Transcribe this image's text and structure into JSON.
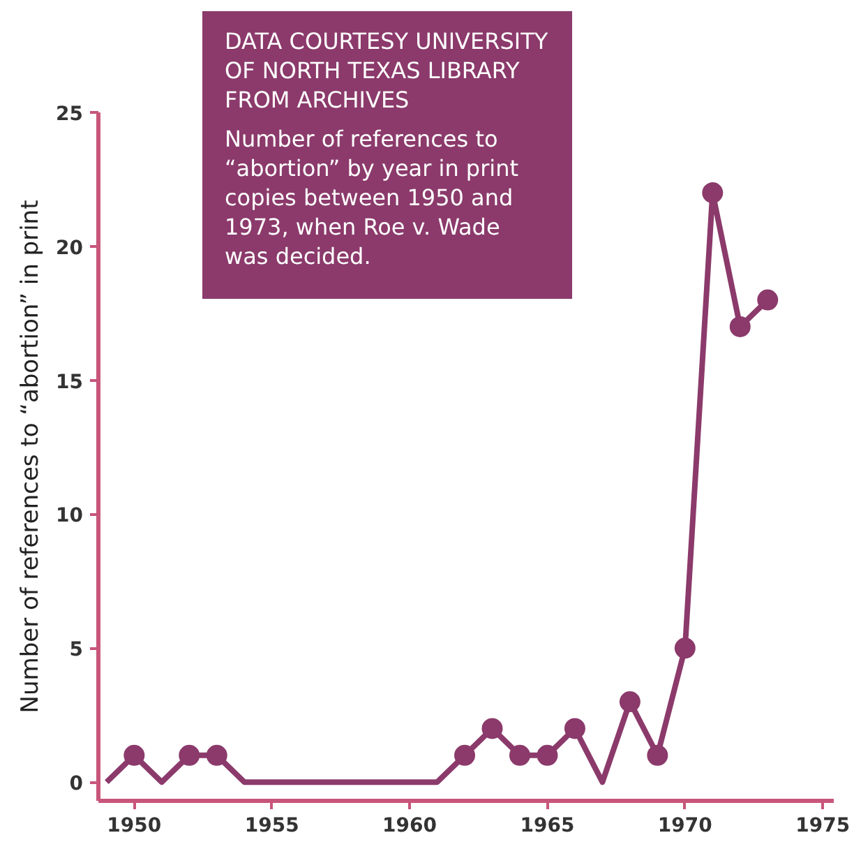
{
  "chart_data": {
    "type": "line",
    "ylabel": "Number of references to “abortion” in print",
    "annotations": [
      "DATA COURTESY UNIVERSITY OF NORTH TEXAS LIBRARY FROM ARCHIVES",
      "Number of references to “abortion” by year in print copies between 1950 and 1973, when Roe v. Wade was decided."
    ],
    "series": [
      {
        "marker": "none",
        "color": "#8b3a6b",
        "x": [
          1949,
          1950,
          1951,
          1952,
          1953,
          1954,
          1955,
          1956,
          1957,
          1958,
          1959,
          1960,
          1961,
          1962,
          1963,
          1964,
          1965,
          1966,
          1967,
          1968,
          1969,
          1970,
          1971,
          1972,
          1973
        ],
        "values": [
          0,
          1,
          0,
          1,
          1,
          0,
          0,
          0,
          0,
          0,
          0,
          0,
          0,
          1,
          2,
          1,
          1,
          2,
          0,
          3,
          1,
          5,
          22,
          17,
          18
        ]
      },
      {
        "type": "scatter",
        "marker": "circle",
        "color": "#8b3a6b",
        "x": [
          1950,
          1952,
          1953,
          1962,
          1963,
          1964,
          1965,
          1966,
          1968,
          1969,
          1970,
          1971,
          1972,
          1973
        ],
        "values": [
          1,
          1,
          1,
          1,
          2,
          1,
          1,
          2,
          3,
          1,
          5,
          22,
          17,
          18
        ]
      }
    ],
    "xlim": [
      1948.7,
      1975.4
    ],
    "xticks": [
      1950,
      1955,
      1960,
      1965,
      1970,
      1975
    ],
    "ylim": [
      -0.7,
      25
    ],
    "yticks": [
      0,
      5,
      10,
      15,
      20,
      25
    ],
    "grid": false,
    "line_style": "solid"
  }
}
